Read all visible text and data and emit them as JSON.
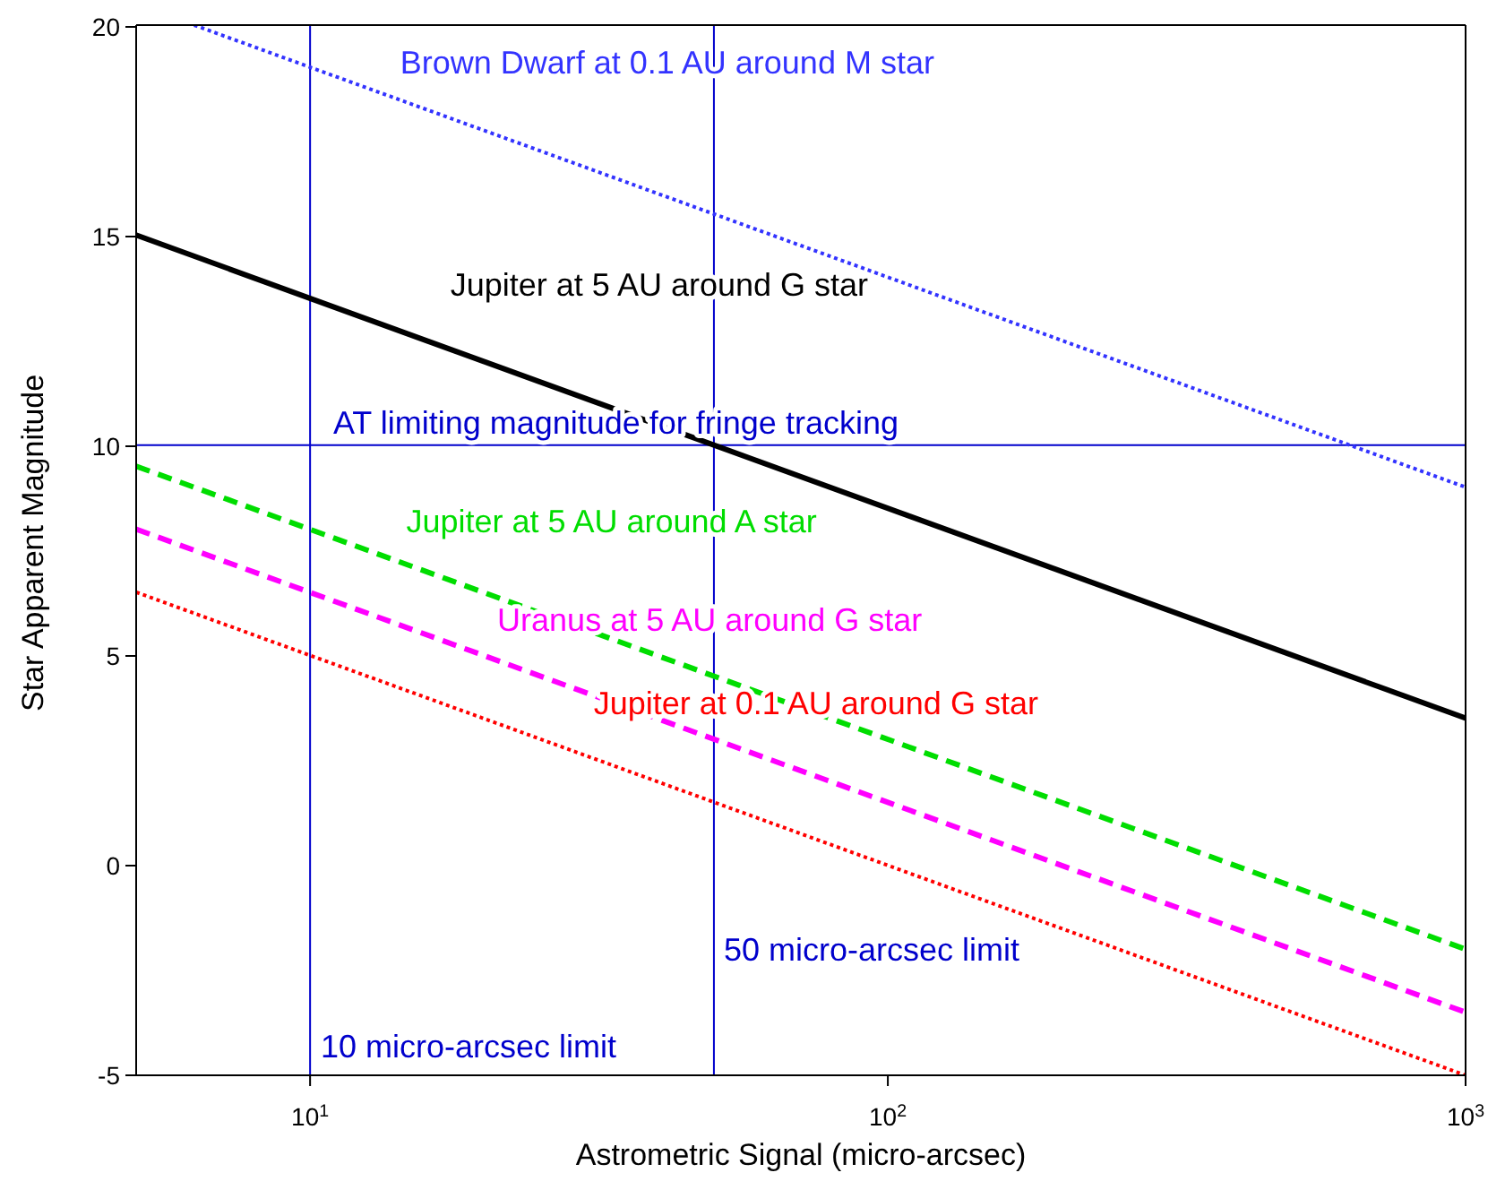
{
  "chart_data": {
    "type": "line",
    "xlabel": "Astrometric Signal (micro-arcsec)",
    "ylabel": "Star Apparent Magnitude",
    "log": "x",
    "xlim": [
      5,
      1000
    ],
    "xticks": [
      {
        "value": 10,
        "label": "10$^{1}$"
      },
      {
        "value": 100,
        "label": "10$^{2}$"
      },
      {
        "value": 1000,
        "label": "10$^{3}$"
      }
    ],
    "ylim": [
      -5,
      20
    ],
    "yticks": [
      -5,
      0,
      5,
      10,
      15,
      20
    ],
    "grid": false,
    "legend": false,
    "marker": "none",
    "series": [
      {
        "name": "Brown Dwarf at 0.1 AU around M star",
        "color": "#3333ff",
        "x": [
          6.3,
          1000
        ],
        "values": [
          20,
          9
        ],
        "line_style": "dotted"
      },
      {
        "name": "Jupiter at 5 AU around G star",
        "color": "#000000",
        "x": [
          5,
          1000
        ],
        "values": [
          15,
          3.5
        ],
        "line_style": "solid"
      },
      {
        "name": "Jupiter at 5 AU around A star",
        "color": "#00dd00",
        "x": [
          5,
          1000
        ],
        "values": [
          9.5,
          -2
        ],
        "line_style": "dashed"
      },
      {
        "name": "Uranus at 5 AU around G star",
        "color": "#ff00ff",
        "x": [
          5,
          1000
        ],
        "values": [
          8,
          -3.5
        ],
        "line_style": "dashed"
      },
      {
        "name": "Jupiter at 0.1 AU around G star",
        "color": "#ff0000",
        "x": [
          5,
          1000
        ],
        "values": [
          6.5,
          -5
        ],
        "line_style": "dotted"
      }
    ],
    "ref_lines": [
      {
        "axis": "y",
        "value": 10,
        "label": "AT limiting magnitude for fringe tracking",
        "color": "#0000cc"
      },
      {
        "axis": "x",
        "value": 10,
        "label": "10 micro-arcsec limit",
        "color": "#0000cc"
      },
      {
        "axis": "x",
        "value": 50,
        "label": "50 micro-arcsec limit",
        "color": "#0000cc"
      }
    ]
  }
}
